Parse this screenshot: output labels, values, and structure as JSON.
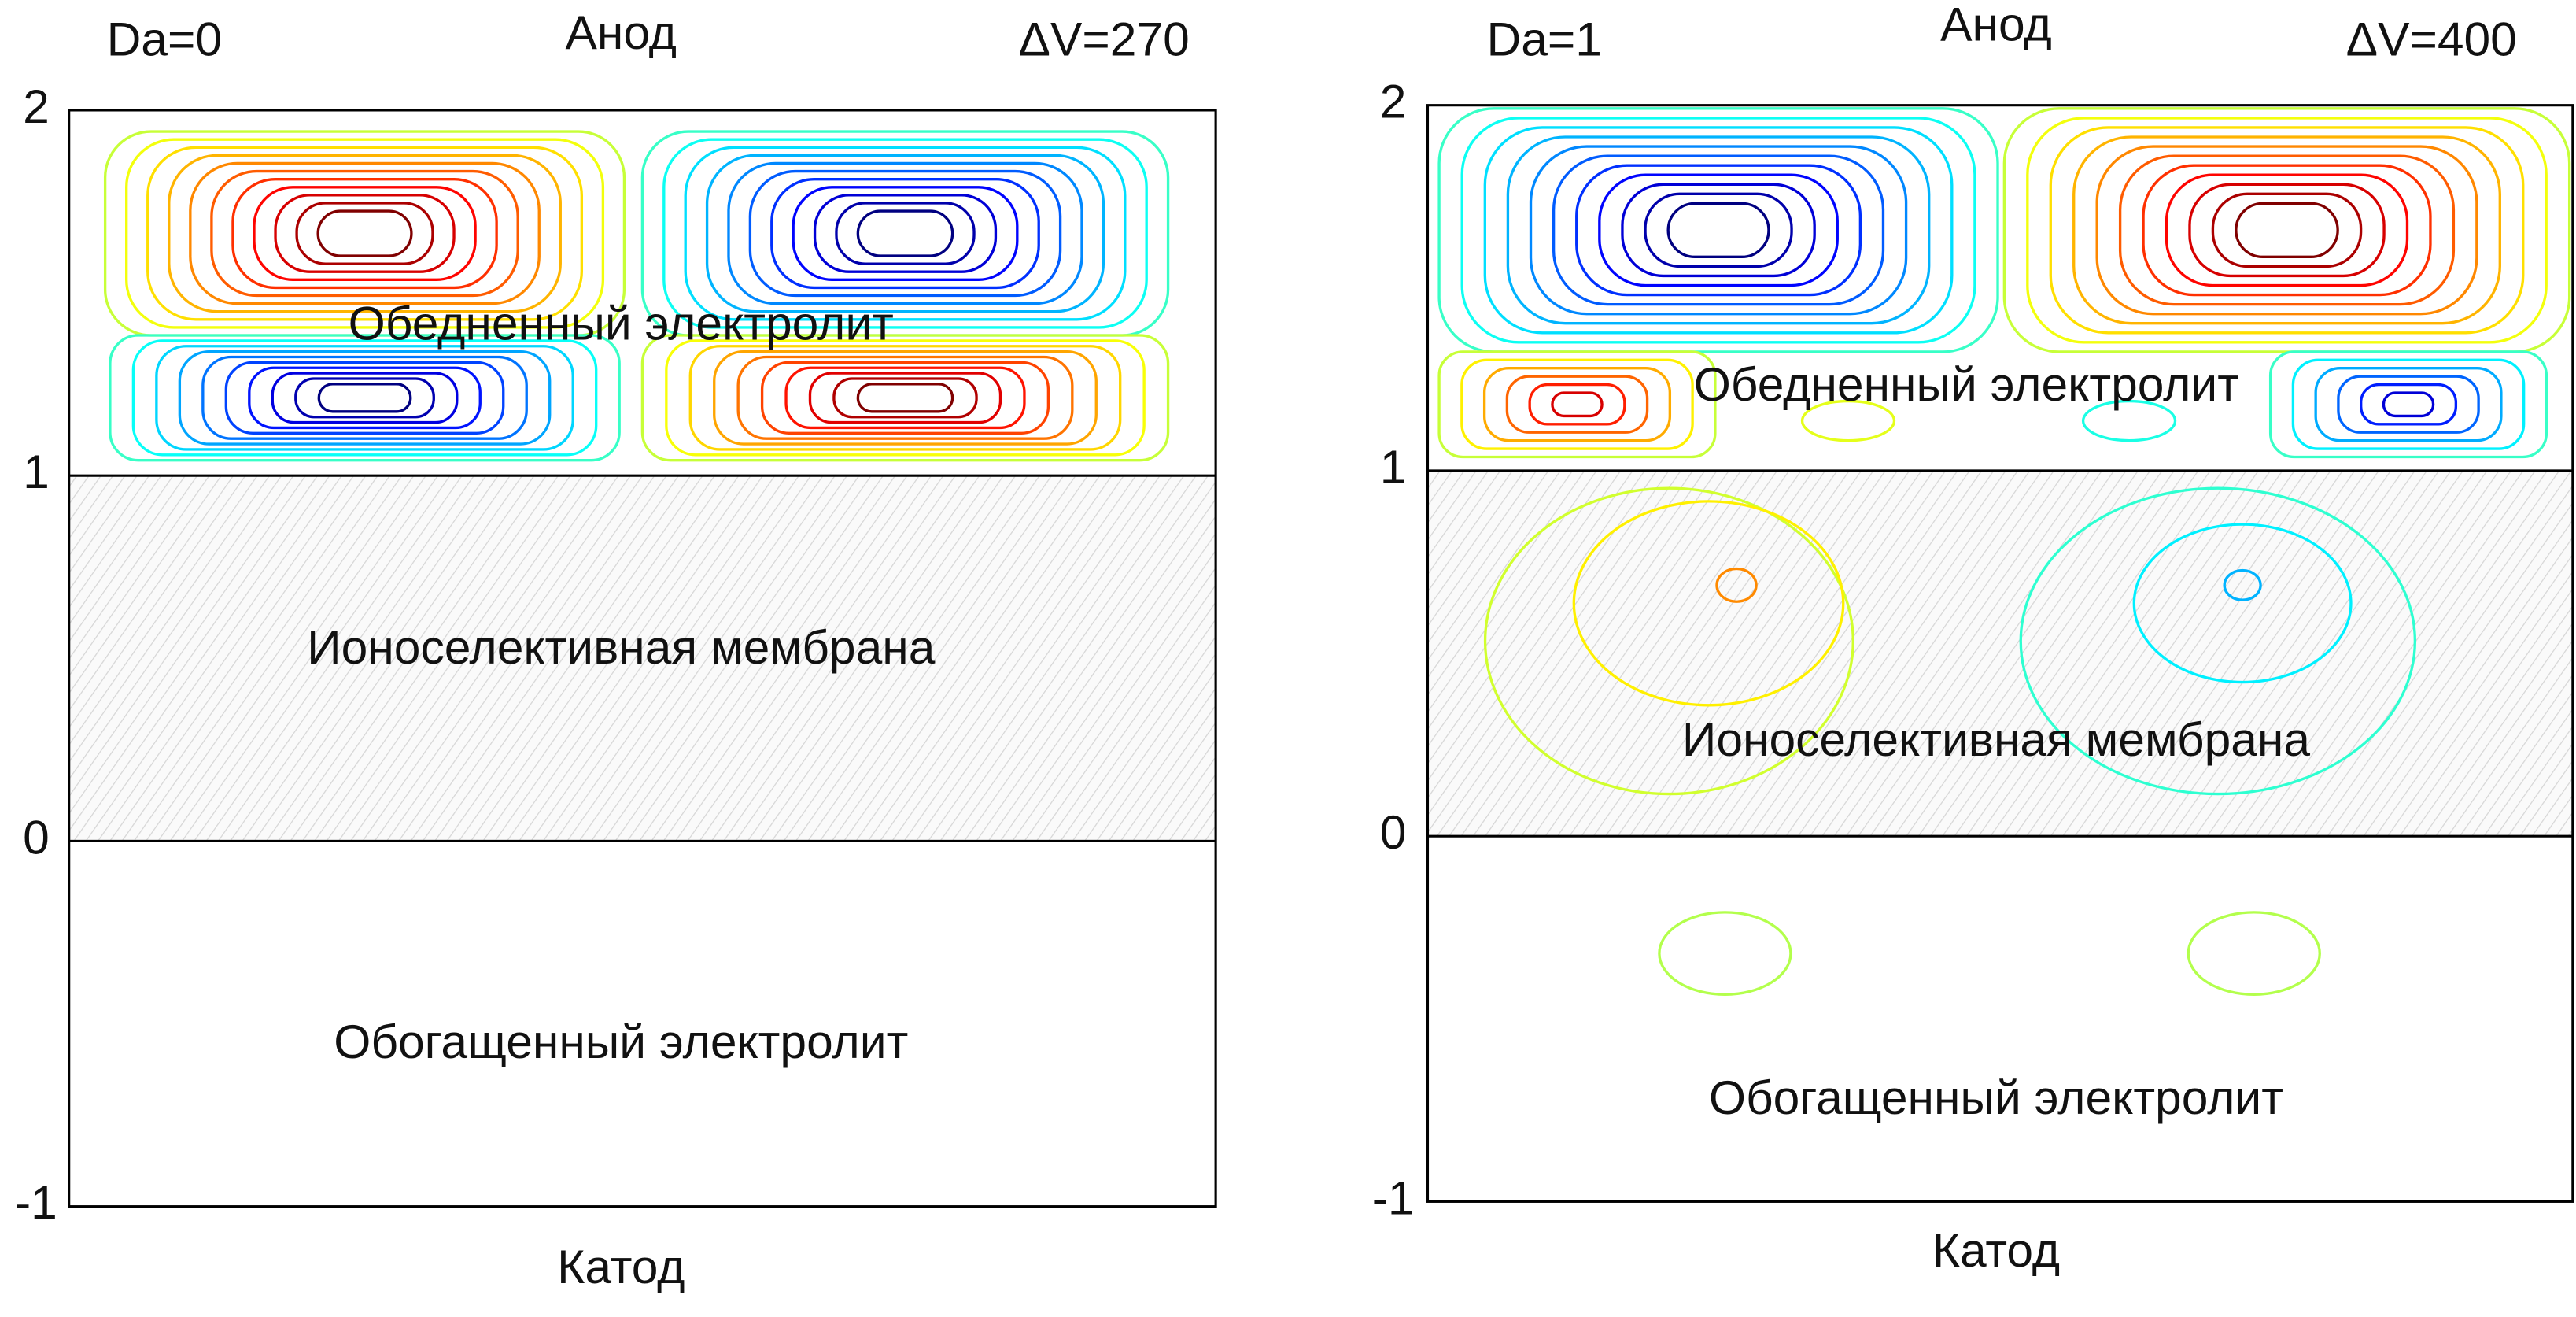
{
  "chart_data": [
    {
      "type": "contour",
      "da": "Da=0",
      "anode": "Анод",
      "voltage": "ΔV=270",
      "cathode": "Катод",
      "regions": [
        "Обедненный электролит",
        "Ионоселективная мембрана",
        "Обогащенный электролит"
      ],
      "ylim": [
        -1,
        2
      ],
      "yticks": [
        -1,
        0,
        1,
        2
      ]
    },
    {
      "type": "contour",
      "da": "Da=1",
      "anode": "Анод",
      "voltage": "ΔV=400",
      "cathode": "Катод",
      "regions": [
        "Обедненный электролит",
        "Ионоселективная мембрана",
        "Обогащенный электролит"
      ],
      "ylim": [
        -1,
        2
      ],
      "yticks": [
        -1,
        0,
        1,
        2
      ]
    }
  ]
}
